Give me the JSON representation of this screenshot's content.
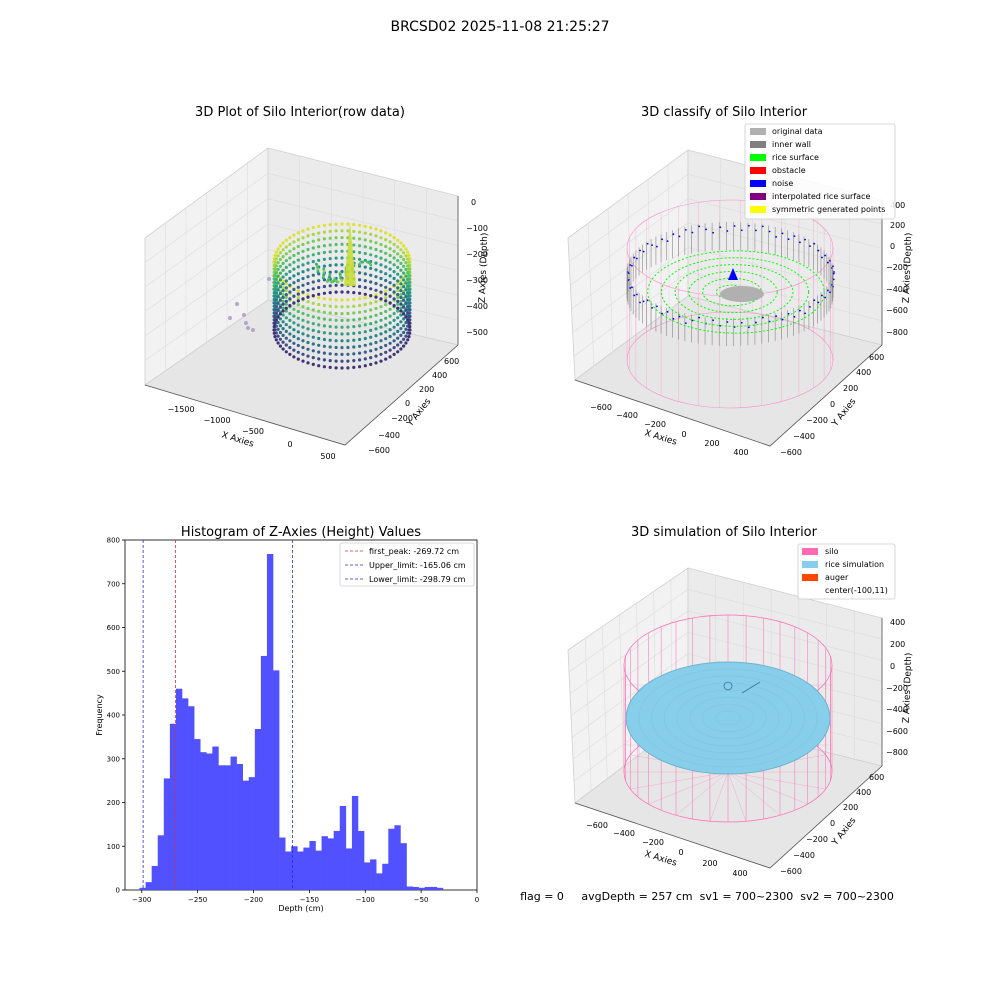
{
  "suptitle": "BRCSD02 2025-11-08 21:25:27",
  "footer": {
    "text": "flag = 0     avgDepth = 257 cm  sv1 = 700~2300  sv2 = 700~2300"
  },
  "colors": {
    "hist_bar": "#5151ff",
    "first_peak": "#e03030",
    "upper_limit": "#2a2ad0",
    "lower_limit": "#2a2ad0",
    "original_data": "#b0b0b0",
    "inner_wall": "#808080",
    "rice_surface": "#00ff00",
    "obstacle": "#ff0000",
    "noise": "#0000ff",
    "interpolated": "#800080",
    "symmetric": "#ffff00",
    "silo": "#ff69b4",
    "rice_sim": "#87ceeb",
    "auger": "#ff4500"
  },
  "chart_data": [
    {
      "type": "scatter",
      "title": "3D Plot of Silo Interior(row data)",
      "xlabel": "X Axies",
      "ylabel": "Y Axies",
      "zlabel": "Z Axies (Depth)",
      "xticks": [
        "−1500",
        "−1000",
        "−500",
        "0",
        "500"
      ],
      "yticks": [
        "−600",
        "−400",
        "−200",
        "0",
        "200",
        "400",
        "600"
      ],
      "zticks": [
        "0",
        "−100",
        "−200",
        "−300",
        "−400",
        "−500"
      ],
      "colormap": "viridis"
    },
    {
      "type": "scatter",
      "title": "3D classify of Silo Interior",
      "xlabel": "X Axies",
      "ylabel": "Y Axies",
      "zlabel": "Z Axies (Depth)",
      "xticks": [
        "−600",
        "−400",
        "−200",
        "0",
        "200",
        "400"
      ],
      "yticks": [
        "−600",
        "−400",
        "−200",
        "0",
        "200",
        "400",
        "600"
      ],
      "zticks": [
        "200",
        "0",
        "−200",
        "−400",
        "−600",
        "−800"
      ],
      "zticks_top": "400",
      "legend": [
        "original data",
        "inner wall",
        "rice surface",
        "obstacle",
        "noise",
        "interpolated rice surface",
        "symmetric generated points"
      ]
    },
    {
      "type": "bar",
      "title": "Histogram of Z-Axies (Height) Values",
      "xlabel": "Depth (cm)",
      "ylabel": "Frequency",
      "xlim": [
        -315,
        0
      ],
      "ylim": [
        0,
        800
      ],
      "xticks": [
        "−300",
        "−250",
        "−200",
        "−150",
        "−100",
        "−50",
        "0"
      ],
      "yticks": [
        "0",
        "100",
        "200",
        "300",
        "400",
        "500",
        "600",
        "700",
        "800"
      ],
      "bin_start": -302,
      "bin_width": 5.43,
      "values": [
        5,
        18,
        55,
        125,
        255,
        380,
        460,
        438,
        420,
        345,
        315,
        312,
        328,
        285,
        285,
        305,
        288,
        250,
        258,
        368,
        535,
        768,
        502,
        120,
        88,
        100,
        88,
        97,
        112,
        90,
        123,
        118,
        135,
        192,
        95,
        215,
        135,
        63,
        70,
        38,
        60,
        140,
        148,
        107,
        8,
        7,
        5,
        7,
        7,
        5
      ],
      "vlines": [
        {
          "label": "first_peak: -269.72 cm",
          "x": -269.72,
          "color_key": "first_peak"
        },
        {
          "label": "Upper_limit: -165.06 cm",
          "x": -165.06,
          "color_key": "upper_limit"
        },
        {
          "label": "Lower_limit: -298.79 cm",
          "x": -298.79,
          "color_key": "lower_limit"
        }
      ],
      "legend_loc": "upper right"
    },
    {
      "type": "scatter",
      "title": "3D simulation of Silo Interior",
      "xlabel": "X Axies",
      "ylabel": "Y Axies",
      "zlabel": "Z Axies (Depth)",
      "xticks": [
        "−600",
        "−400",
        "−200",
        "0",
        "200",
        "400"
      ],
      "yticks": [
        "−600",
        "−400",
        "−200",
        "0",
        "200",
        "400",
        "600"
      ],
      "zticks": [
        "400",
        "200",
        "0",
        "−200",
        "−400",
        "−600",
        "−800"
      ],
      "legend": [
        "silo",
        "rice simulation",
        "auger",
        "center(-100,11)"
      ]
    }
  ]
}
